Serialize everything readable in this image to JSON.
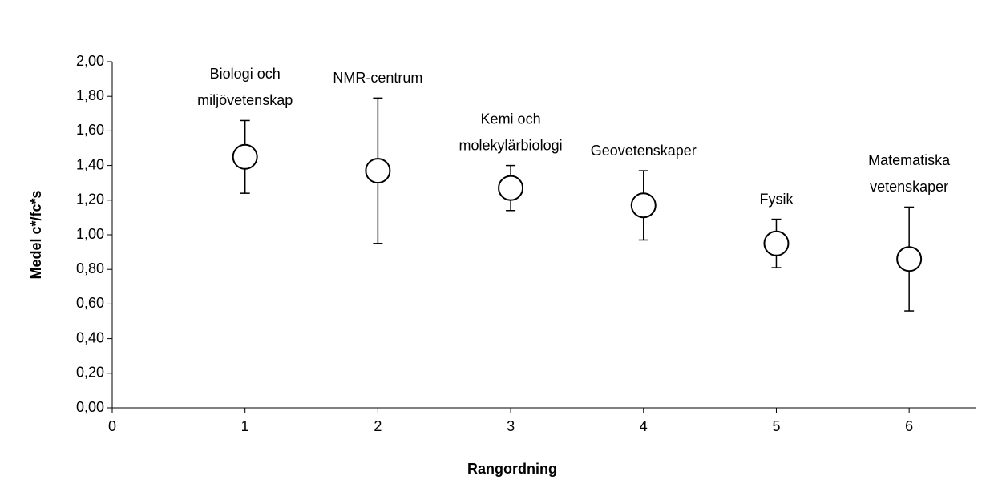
{
  "chart_data": {
    "type": "scatter",
    "x_label": "Rangordning",
    "y_label": "Medel c*/fc*s",
    "x": [
      1,
      2,
      3,
      4,
      5,
      6
    ],
    "values": [
      1.45,
      1.37,
      1.27,
      1.17,
      0.95,
      0.86
    ],
    "errors": [
      0.21,
      0.42,
      0.13,
      0.2,
      0.14,
      0.3
    ],
    "point_labels": [
      [
        "Biologi och",
        "miljövetenskap"
      ],
      [
        "NMR-centrum"
      ],
      [
        "Kemi och",
        "molekylärbiologi"
      ],
      [
        "Geovetenskaper"
      ],
      [
        "Fysik"
      ],
      [
        "Matematiska",
        "vetenskaper"
      ]
    ],
    "color": "#000000",
    "xlim": [
      0,
      6.5
    ],
    "xticks": [
      0,
      1,
      2,
      3,
      4,
      5,
      6
    ],
    "ylim": [
      0,
      2
    ],
    "yticks": [
      {
        "value": 0,
        "label": "0,00"
      },
      {
        "value": 0.2,
        "label": "0,20"
      },
      {
        "value": 0.4,
        "label": "0,40"
      },
      {
        "value": 0.6,
        "label": "0,60"
      },
      {
        "value": 0.8,
        "label": "0,80"
      },
      {
        "value": 1,
        "label": "1,00"
      },
      {
        "value": 1.2,
        "label": "1,20"
      },
      {
        "value": 1.4,
        "label": "1,40"
      },
      {
        "value": 1.6,
        "label": "1,60"
      },
      {
        "value": 1.8,
        "label": "1,80"
      },
      {
        "value": 2,
        "label": "2,00"
      }
    ]
  }
}
